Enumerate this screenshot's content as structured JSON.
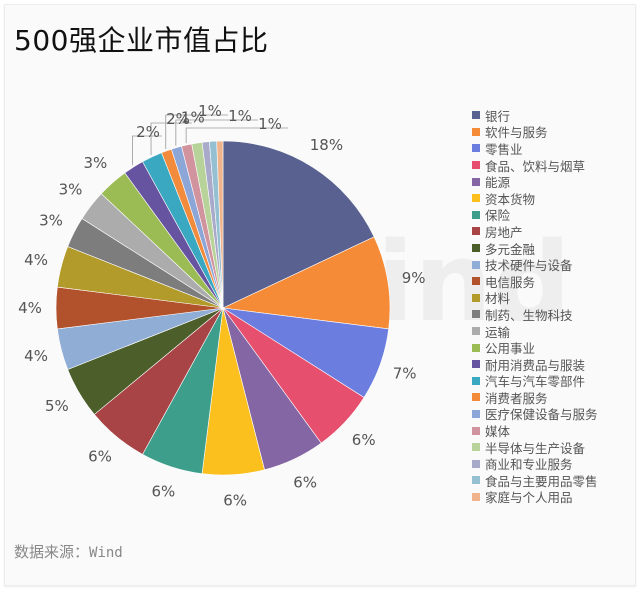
{
  "title": "500强企业市值占比",
  "source": {
    "label": "数据来源：",
    "value": "Wind"
  },
  "watermark": "Wind",
  "chart_data": {
    "type": "pie",
    "title": "500强企业市值占比",
    "legend_position": "right",
    "start_angle_deg": 0,
    "direction": "clockwise",
    "categories": [
      "银行",
      "软件与服务",
      "零售业",
      "食品、饮料与烟草",
      "能源",
      "资本货物",
      "保险",
      "房地产",
      "多元金融",
      "技术硬件与设备",
      "电信服务",
      "材料",
      "制药、生物科技",
      "运输",
      "公用事业",
      "耐用消费品与服装",
      "汽车与汽车零部件",
      "消费者服务",
      "医疗保健设备与服务",
      "媒体",
      "半导体与生产设备",
      "商业和专业服务",
      "食品与主要用品零售",
      "家庭与个人用品"
    ],
    "values": [
      18,
      9,
      7,
      6,
      6,
      6,
      6,
      6,
      5,
      4,
      4,
      4,
      3,
      3,
      3,
      2,
      2,
      1,
      1,
      1,
      1,
      0.7,
      0.7,
      0.6
    ],
    "labels": [
      "18%",
      "9%",
      "7%",
      "6%",
      "6%",
      "6%",
      "6%",
      "6%",
      "5%",
      "4%",
      "4%",
      "4%",
      "3%",
      "3%",
      "3%",
      "2%",
      "2%",
      "1%",
      "1%",
      "1%",
      "1%",
      "",
      "",
      ""
    ],
    "colors": [
      "#58618f",
      "#f68b37",
      "#6c7de0",
      "#e6506e",
      "#8466a4",
      "#fbc01d",
      "#3e9e8c",
      "#a84446",
      "#4c5e2a",
      "#90add6",
      "#b2522d",
      "#b29a2b",
      "#7d7d7d",
      "#acacac",
      "#9bbb55",
      "#6754a0",
      "#3aa8c0",
      "#f28b3c",
      "#8da6d8",
      "#d1949e",
      "#b8d39a",
      "#a9a9c9",
      "#94c0d2",
      "#f0b48c"
    ]
  },
  "legend": {
    "items": [
      {
        "label": "银行",
        "color": "#58618f"
      },
      {
        "label": "软件与服务",
        "color": "#f68b37"
      },
      {
        "label": "零售业",
        "color": "#6c7de0"
      },
      {
        "label": "食品、饮料与烟草",
        "color": "#e6506e"
      },
      {
        "label": "能源",
        "color": "#8466a4"
      },
      {
        "label": "资本货物",
        "color": "#fbc01d"
      },
      {
        "label": "保险",
        "color": "#3e9e8c"
      },
      {
        "label": "房地产",
        "color": "#a84446"
      },
      {
        "label": "多元金融",
        "color": "#4c5e2a"
      },
      {
        "label": "技术硬件与设备",
        "color": "#90add6"
      },
      {
        "label": "电信服务",
        "color": "#b2522d"
      },
      {
        "label": "材料",
        "color": "#b29a2b"
      },
      {
        "label": "制药、生物科技",
        "color": "#7d7d7d"
      },
      {
        "label": "运输",
        "color": "#acacac"
      },
      {
        "label": "公用事业",
        "color": "#9bbb55"
      },
      {
        "label": "耐用消费品与服装",
        "color": "#6754a0"
      },
      {
        "label": "汽车与汽车零部件",
        "color": "#3aa8c0"
      },
      {
        "label": "消费者服务",
        "color": "#f28b3c"
      },
      {
        "label": "医疗保健设备与服务",
        "color": "#8da6d8"
      },
      {
        "label": "媒体",
        "color": "#d1949e"
      },
      {
        "label": "半导体与生产设备",
        "color": "#b8d39a"
      },
      {
        "label": "商业和专业服务",
        "color": "#a9a9c9"
      },
      {
        "label": "食品与主要用品零售",
        "color": "#94c0d2"
      },
      {
        "label": "家庭与个人用品",
        "color": "#f0b48c"
      }
    ]
  }
}
